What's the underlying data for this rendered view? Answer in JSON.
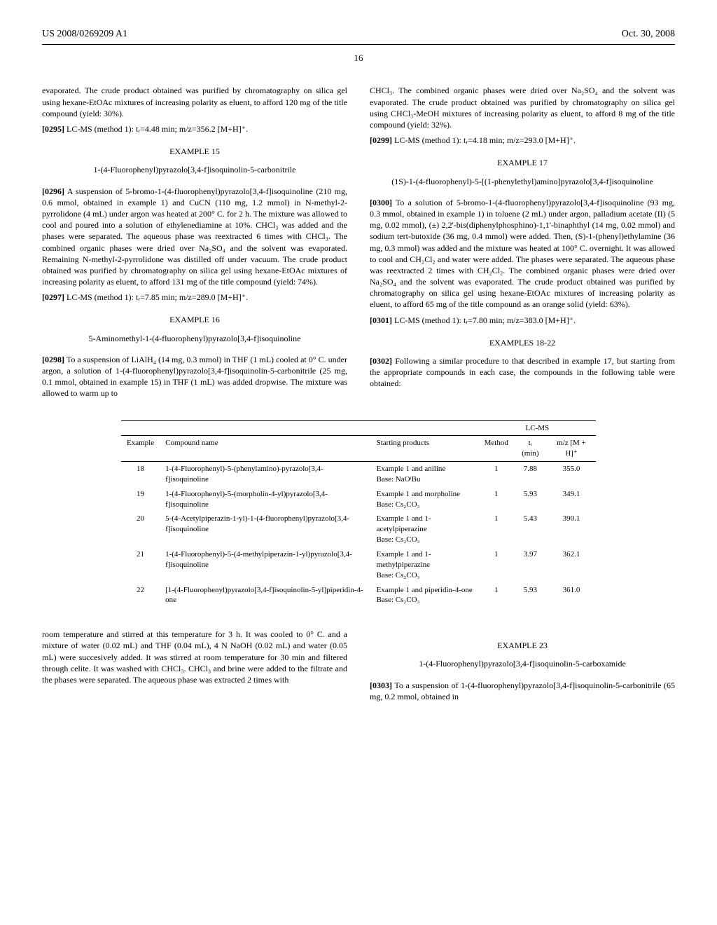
{
  "header": {
    "left": "US 2008/0269209 A1",
    "right": "Oct. 30, 2008"
  },
  "page_number": "16",
  "col1": {
    "p1": "evaporated. The crude product obtained was purified by chromatography on silica gel using hexane-EtOAc mixtures of increasing polarity as eluent, to afford 120 mg of the title compound (yield: 30%).",
    "p2_num": "[0295]",
    "p2": "LC-MS (method 1): tᵣ=4.48 min; m/z=356.2 [M+H]⁺.",
    "ex15": "EXAMPLE 15",
    "ex15_title": "1-(4-Fluorophenyl)pyrazolo[3,4-f]isoquinolin-5-carbonitrile",
    "p3_num": "[0296]",
    "p3": "A suspension of 5-bromo-1-(4-fluorophenyl)pyrazolo[3,4-f]isoquinoline (210 mg, 0.6 mmol, obtained in example 1) and CuCN (110 mg, 1.2 mmol) in N-methyl-2-pyrrolidone (4 mL) under argon was heated at 200° C. for 2 h. The mixture was allowed to cool and poured into a solution of ethylenediamine at 10%. CHCl₃ was added and the phases were separated. The aqueous phase was reextracted 6 times with CHCl₃. The combined organic phases were dried over Na₂SO₄ and the solvent was evaporated. Remaining N-methyl-2-pyrrolidone was distilled off under vacuum. The crude product obtained was purified by chromatography on silica gel using hexane-EtOAc mixtures of increasing polarity as eluent, to afford 131 mg of the title compound (yield: 74%).",
    "p4_num": "[0297]",
    "p4": "LC-MS (method 1): tᵣ=7.85 min; m/z=289.0 [M+H]⁺.",
    "ex16": "EXAMPLE 16",
    "ex16_title": "5-Aminomethyl-1-(4-fluorophenyl)pyrazolo[3,4-f]isoquinoline",
    "p5_num": "[0298]",
    "p5": "To a suspension of LiAlH₄ (14 mg, 0.3 mmol) in THF (1 mL) cooled at 0° C. under argon, a solution of 1-(4-fluorophenyl)pyrazolo[3,4-f]isoquinolin-5-carbonitrile (25 mg, 0.1 mmol, obtained in example 15) in THF (1 mL) was added dropwise. The mixture was allowed to warm up to"
  },
  "col2": {
    "p1": "CHCl₃. The combined organic phases were dried over Na₂SO₄ and the solvent was evaporated. The crude product obtained was purified by chromatography on silica gel using CHCl₃-MeOH mixtures of increasing polarity as eluent, to afford 8 mg of the title compound (yield: 32%).",
    "p2_num": "[0299]",
    "p2": "LC-MS (method 1): tᵣ=4.18 min; m/z=293.0 [M+H]⁺.",
    "ex17": "EXAMPLE 17",
    "ex17_title": "(1S)-1-(4-fluorophenyl)-5-[(1-phenylethyl)amino]pyrazolo[3,4-f]isoquinoline",
    "p3_num": "[0300]",
    "p3": "To a solution of 5-bromo-1-(4-fluorophenyl)pyrazolo[3,4-f]isoquinoline (93 mg, 0.3 mmol, obtained in example 1) in toluene (2 mL) under argon, palladium acetate (II) (5 mg, 0.02 mmol), (±) 2,2'-bis(diphenylphosphino)-1,1'-binaphthyl (14 mg, 0.02 mmol) and sodium tert-butoxide (36 mg, 0.4 mmol) were added. Then, (S)-1-(phenyl)ethylamine (36 mg, 0.3 mmol) was added and the mixture was heated at 100° C. overnight. It was allowed to cool and CH₂Cl₂ and water were added. The phases were separated. The aqueous phase was reextracted 2 times with CH₂Cl₂. The combined organic phases were dried over Na₂SO₄ and the solvent was evaporated. The crude product obtained was purified by chromatography on silica gel using hexane-EtOAc mixtures of increasing polarity as eluent, to afford 65 mg of the title compound as an orange solid (yield: 63%).",
    "p4_num": "[0301]",
    "p4": "LC-MS (method 1): tᵣ=7.80 min; m/z=383.0 [M+H]⁺.",
    "ex18": "EXAMPLES 18-22",
    "p5_num": "[0302]",
    "p5": "Following a similar procedure to that described in example 17, but starting from the appropriate compounds in each case, the compounds in the following table were obtained:"
  },
  "table": {
    "lcms_header": "LC-MS",
    "columns": [
      "Example",
      "Compound name",
      "Starting products",
      "Method",
      "tᵣ (min)",
      "m/z [M + H]⁺"
    ],
    "rows": [
      {
        "ex": "18",
        "name": "1-(4-Fluorophenyl)-5-(phenylamino)-pyrazolo[3,4-f]isoquinoline",
        "start": "Example 1 and aniline\nBase: NaOᵗBu",
        "method": "1",
        "tr": "7.88",
        "mz": "355.0"
      },
      {
        "ex": "19",
        "name": "1-(4-Fluorophenyl)-5-(morpholin-4-yl)pyrazolo[3,4-f]isoquinoline",
        "start": "Example 1 and morpholine\nBase: Cs₂CO₃",
        "method": "1",
        "tr": "5.93",
        "mz": "349.1"
      },
      {
        "ex": "20",
        "name": "5-(4-Acetylpiperazin-1-yl)-1-(4-fluorophenyl)pyrazolo[3,4-f]isoquinoline",
        "start": "Example 1 and 1-acetylpiperazine\nBase: Cs₂CO₃",
        "method": "1",
        "tr": "5.43",
        "mz": "390.1"
      },
      {
        "ex": "21",
        "name": "1-(4-Fluorophenyl)-5-(4-methylpiperazin-1-yl)pyrazolo[3,4-f]isoquinoline",
        "start": "Example 1 and 1-methylpiperazine\nBase: Cs₂CO₃",
        "method": "1",
        "tr": "3.97",
        "mz": "362.1"
      },
      {
        "ex": "22",
        "name": "[1-(4-Fluorophenyl)pyrazolo[3,4-f]isoquinolin-5-yl]piperidin-4-one",
        "start": "Example 1 and piperidin-4-one\nBase: Cs₂CO₃",
        "method": "1",
        "tr": "5.93",
        "mz": "361.0"
      }
    ]
  },
  "after": {
    "left": "room temperature and stirred at this temperature for 3 h. It was cooled to 0° C. and a mixture of water (0.02 mL) and THF (0.04 mL), 4 N NaOH (0.02 mL) and water (0.05 mL) were succesively added. It was stirred at room temperature for 30 min and filtered through celite. It was washed with CHCl₃. CHCl₃ and brine were added to the filtrate and the phases were separated. The aqueous phase was extracted 2 times with",
    "ex23": "EXAMPLE 23",
    "ex23_title": "1-(4-Fluorophenyl)pyrazolo[3,4-f]isoquinolin-5-carboxamide",
    "p_num": "[0303]",
    "p": "To a suspension of 1-(4-fluorophenyl)pyrazolo[3,4-f]isoquinolin-5-carbonitrile (65 mg, 0.2 mmol, obtained in"
  }
}
